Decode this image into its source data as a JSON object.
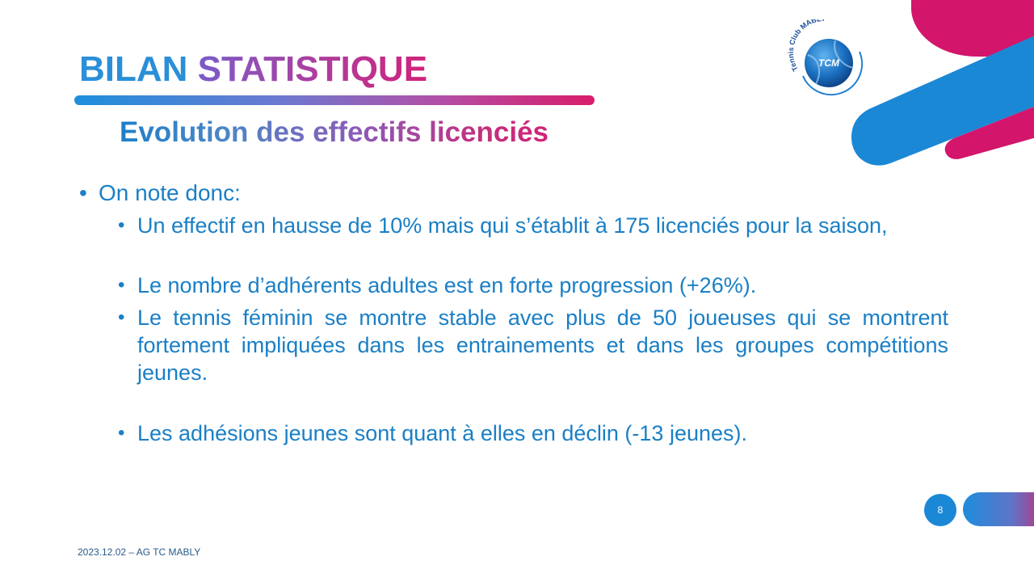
{
  "slide": {
    "title_word1": "BILAN",
    "title_word2": "STATISTIQUE",
    "subtitle": "Evolution des effectifs licenciés",
    "intro": "On note donc:",
    "bullets": [
      "Un effectif en hausse de 10% mais qui s’établit à 175 licenciés pour la saison,",
      "Le nombre d’adhérents adultes est en forte progression (+26%).",
      "Le tennis féminin se montre stable avec plus de 50 joueuses qui se montrent fortement impliquées dans les entrainements et dans les groupes compétitions jeunes.",
      "Les adhésions jeunes sont quant à elles en déclin (-13 jeunes)."
    ],
    "footer": "2023.12.02 – AG TC MABLY",
    "page_number": "8"
  },
  "logo": {
    "arc_text": "Tennis Club MABLY",
    "ball_text": "TCM"
  },
  "colors": {
    "blue": "#1b88d6",
    "magenta": "#d0156b",
    "purple": "#8a4fc0"
  }
}
